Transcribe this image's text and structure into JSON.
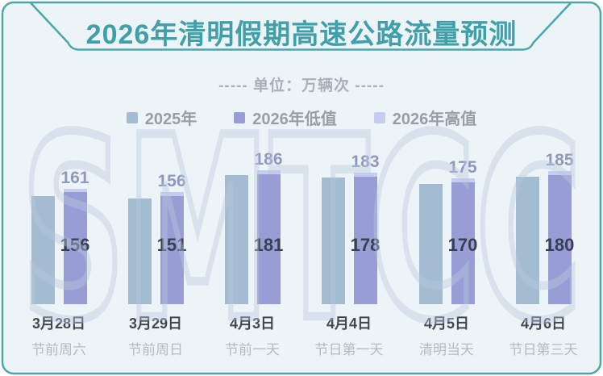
{
  "frame": {
    "background": "#edf4f7",
    "border_color": "#4ba6ae",
    "watermark_text": "SMTCC"
  },
  "header": {
    "title": "2026年清明假期高速公路流量预测",
    "unit_note": "----- 单位：万辆次 -----"
  },
  "legend": {
    "items": [
      {
        "label": "2025年",
        "color": "#a3bcd1"
      },
      {
        "label": "2026年低值",
        "color": "#989ed5"
      },
      {
        "label": "2026年高值",
        "color": "#c6cdf2"
      }
    ]
  },
  "chart_data": {
    "type": "bar",
    "title": "2026年清明假期高速公路流量预测",
    "unit": "万辆次",
    "legend_position": "top",
    "axis_shown": false,
    "baseline": 0,
    "ylim": [
      0,
      220
    ],
    "categories": [
      "3月28日",
      "3月29日",
      "4月3日",
      "4月4日",
      "4月5日",
      "4月6日"
    ],
    "category_notes": [
      "节前周六",
      "节前周日",
      "节前一天",
      "节日第一天",
      "清明当天",
      "节日第三天"
    ],
    "series": [
      {
        "name": "2025年",
        "color": "#a3bcd1",
        "values": [
          151,
          147,
          180,
          177,
          168,
          178
        ],
        "value_labels_shown": false,
        "estimated_from_bar_heights": true
      },
      {
        "name": "2026年低值",
        "color": "#989ed5",
        "values": [
          156,
          151,
          181,
          178,
          170,
          180
        ],
        "value_label_position": "inside"
      },
      {
        "name": "2026年高值",
        "color": "#c6cdf2",
        "values": [
          161,
          156,
          186,
          183,
          175,
          185
        ],
        "value_label_position": "above"
      }
    ]
  }
}
